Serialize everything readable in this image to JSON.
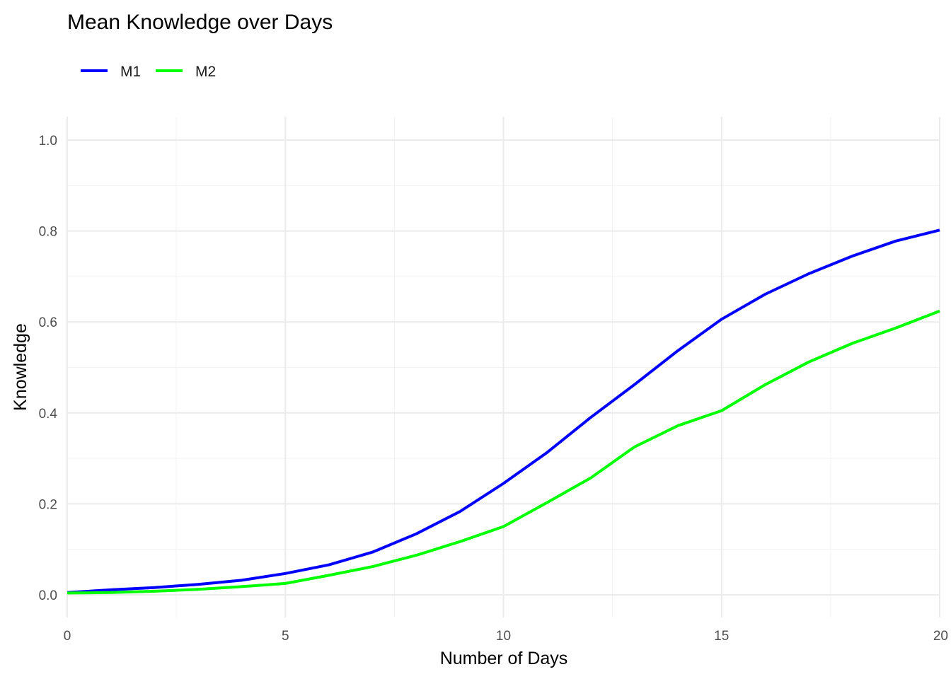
{
  "chart_data": {
    "type": "line",
    "title": "Mean Knowledge over Days",
    "xlabel": "Number of Days",
    "ylabel": "Knowledge",
    "xlim": [
      0,
      20
    ],
    "ylim": [
      0,
      1
    ],
    "x_ticks": [
      0,
      5,
      10,
      15,
      20
    ],
    "y_ticks": [
      0.0,
      0.2,
      0.4,
      0.6,
      0.8,
      1.0
    ],
    "y_tick_labels": [
      "0.0",
      "0.2",
      "0.4",
      "0.6",
      "0.8",
      "1.0"
    ],
    "x_tick_labels": [
      "0",
      "5",
      "10",
      "15",
      "20"
    ],
    "grid": true,
    "legend_position": "top-left",
    "x": [
      0,
      1,
      2,
      3,
      4,
      5,
      6,
      7,
      8,
      9,
      10,
      11,
      12,
      13,
      14,
      15,
      16,
      17,
      18,
      19,
      20
    ],
    "series": [
      {
        "name": "M1",
        "color": "#0000ff",
        "values": [
          0.005,
          0.011,
          0.016,
          0.023,
          0.032,
          0.047,
          0.066,
          0.094,
          0.134,
          0.183,
          0.245,
          0.313,
          0.39,
          0.462,
          0.537,
          0.606,
          0.661,
          0.706,
          0.745,
          0.778,
          0.802
        ]
      },
      {
        "name": "M2",
        "color": "#00ff00",
        "values": [
          0.004,
          0.005,
          0.008,
          0.012,
          0.018,
          0.025,
          0.043,
          0.062,
          0.087,
          0.117,
          0.15,
          0.203,
          0.257,
          0.325,
          0.372,
          0.405,
          0.462,
          0.512,
          0.553,
          0.587,
          0.624
        ]
      }
    ]
  }
}
